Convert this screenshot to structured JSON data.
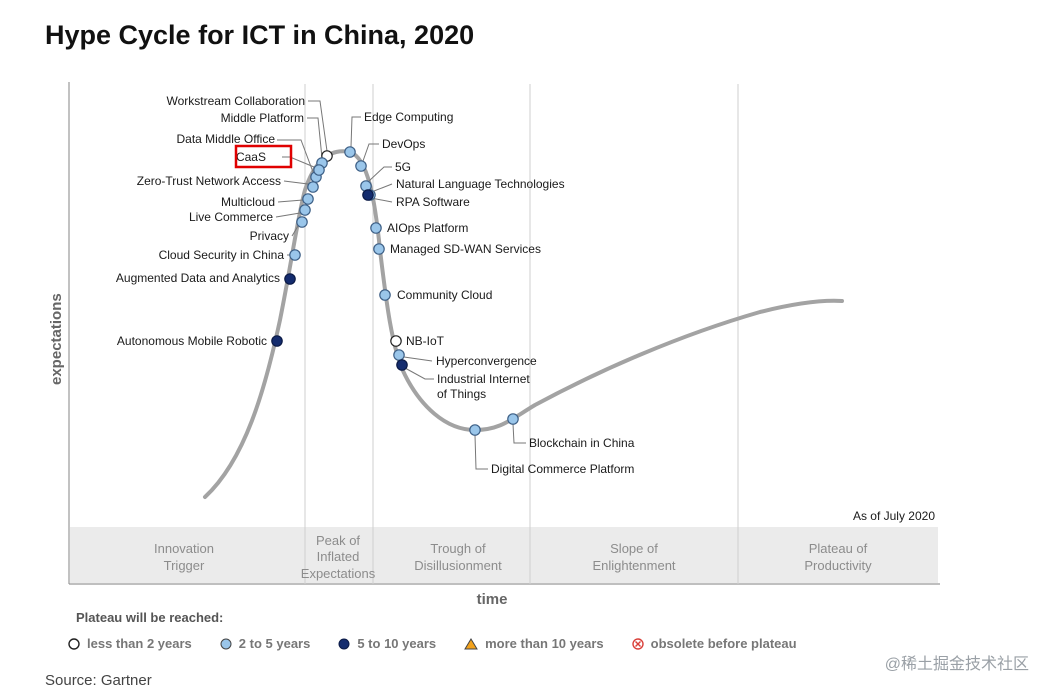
{
  "title": "Hype Cycle for ICT in China, 2020",
  "as_of": "As of July 2020",
  "axes": {
    "y": "expectations",
    "x": "time"
  },
  "phases": [
    [
      "Innovation",
      "Trigger"
    ],
    [
      "Peak of",
      "Inflated",
      "Expectations"
    ],
    [
      "Trough of",
      "Disillusionment"
    ],
    [
      "Slope of",
      "Enlightenment"
    ],
    [
      "Plateau of",
      "Productivity"
    ]
  ],
  "legend": {
    "title": "Plateau will be reached:",
    "items": [
      {
        "label": "less than 2 years",
        "marker": "circle-white"
      },
      {
        "label": "2 to 5 years",
        "marker": "circle-lightblue"
      },
      {
        "label": "5 to 10 years",
        "marker": "circle-navy"
      },
      {
        "label": "more than 10 years",
        "marker": "triangle-orange"
      },
      {
        "label": "obsolete before plateau",
        "marker": "circle-x-red"
      }
    ]
  },
  "colors": {
    "white": "#ffffff",
    "lightblue": "#9ac6ea",
    "navy": "#142c6e",
    "orange": "#f3a21b",
    "red": "#d9403a",
    "curve": "#a3a3a3",
    "highlight": "#e00000"
  },
  "technologies": [
    {
      "name": "Workstream Collaboration",
      "category": "white"
    },
    {
      "name": "Middle Platform",
      "category": "lightblue"
    },
    {
      "name": "Data Middle Office",
      "category": "lightblue"
    },
    {
      "name": "CaaS",
      "category": "lightblue",
      "highlighted": true
    },
    {
      "name": "Zero-Trust Network Access",
      "category": "lightblue"
    },
    {
      "name": "Multicloud",
      "category": "lightblue"
    },
    {
      "name": "Live Commerce",
      "category": "lightblue"
    },
    {
      "name": "Privacy",
      "category": "lightblue"
    },
    {
      "name": "Cloud Security in China",
      "category": "lightblue"
    },
    {
      "name": "Augmented Data and Analytics",
      "category": "navy"
    },
    {
      "name": "Autonomous Mobile Robotic",
      "category": "navy"
    },
    {
      "name": "Edge Computing",
      "category": "lightblue"
    },
    {
      "name": "DevOps",
      "category": "lightblue"
    },
    {
      "name": "5G",
      "category": "lightblue"
    },
    {
      "name": "Natural Language Technologies",
      "category": "lightblue"
    },
    {
      "name": "RPA Software",
      "category": "navy"
    },
    {
      "name": "AIOps Platform",
      "category": "lightblue"
    },
    {
      "name": "Managed SD-WAN Services",
      "category": "lightblue"
    },
    {
      "name": "Community Cloud",
      "category": "lightblue"
    },
    {
      "name": "NB-IoT",
      "category": "white"
    },
    {
      "name": "Hyperconvergence",
      "category": "lightblue"
    },
    {
      "name": [
        "Industrial Internet",
        "of Things"
      ],
      "category": "navy"
    },
    {
      "name": "Blockchain in China",
      "category": "lightblue"
    },
    {
      "name": "Digital Commerce Platform",
      "category": "lightblue"
    }
  ],
  "source": "Source: Gartner",
  "watermark": "@稀土掘金技术社区"
}
